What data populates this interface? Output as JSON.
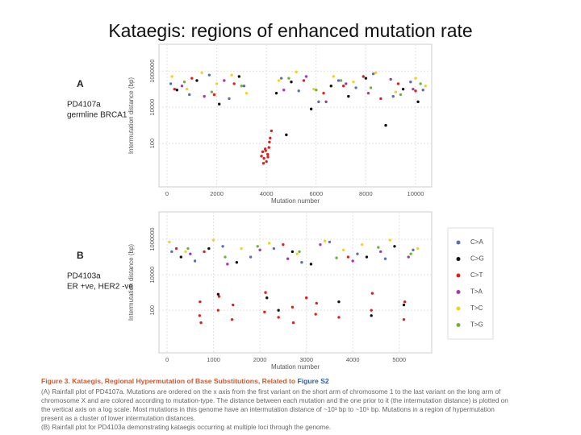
{
  "title": "Kataegis: regions of enhanced mutation rate",
  "chart_data": [
    {
      "type": "scatter",
      "panel_label": "A",
      "sample": "PD4107a",
      "description": "germline BRCA1",
      "xlabel": "Mutation number",
      "ylabel": "Intermutation distance (bp)",
      "xlim": [
        -325,
        10650
      ],
      "xticks": [
        0,
        2000,
        4000,
        6000,
        8000,
        10000
      ],
      "ylim": [
        0.4,
        30000000
      ],
      "yticks": [
        100,
        10000,
        1000000
      ],
      "log_y": true,
      "grid": true,
      "series": [
        {
          "name": "C>A",
          "color": "#5b6fb3",
          "x": [
            150,
            900,
            1700,
            2500,
            3100,
            4600,
            5300,
            6100,
            6900,
            7600,
            8300,
            9100,
            9800,
            10300
          ],
          "values": [
            200000,
            50000,
            600000,
            30000,
            150000,
            400000,
            80000,
            20000,
            300000,
            120000,
            700000,
            40000,
            250000,
            90000
          ]
        },
        {
          "name": "C>G",
          "color": "#111111",
          "x": [
            400,
            1200,
            2100,
            2900,
            4400,
            5000,
            5800,
            6600,
            7300,
            8000,
            8800,
            9500,
            10100,
            4800
          ],
          "values": [
            90000,
            300000,
            15000,
            500000,
            60000,
            250000,
            8000,
            150000,
            40000,
            400000,
            1000,
            100000,
            20000,
            300
          ]
        },
        {
          "name": "C>T",
          "color": "#e0201b",
          "x": [
            300,
            1000,
            1900,
            2700,
            3800,
            3850,
            3900,
            3950,
            4000,
            4050,
            4100,
            4150,
            4200,
            3880,
            3970,
            4060,
            4120,
            5500,
            6300,
            7100,
            7900,
            8600,
            9300,
            10000
          ],
          "values": [
            100000,
            400000,
            50000,
            200000,
            20,
            35,
            15,
            50,
            10,
            25,
            60,
            200,
            500,
            8,
            40,
            18,
            120,
            300000,
            60000,
            150000,
            500000,
            30000,
            200000,
            80000
          ]
        },
        {
          "name": "T>A",
          "color": "#a23aa8",
          "x": [
            600,
            1500,
            2300,
            4700,
            5600,
            6400,
            7200,
            8100,
            9000,
            9900
          ],
          "values": [
            150000,
            40000,
            300000,
            90000,
            500000,
            20000,
            200000,
            60000,
            350000,
            100000
          ]
        },
        {
          "name": "T>C",
          "color": "#f2d31b",
          "x": [
            200,
            800,
            1400,
            2000,
            2600,
            3200,
            4500,
            5200,
            5900,
            6700,
            7500,
            8400,
            9200,
            10000,
            10400
          ],
          "values": [
            500000,
            100000,
            800000,
            200000,
            600000,
            60000,
            300000,
            900000,
            100000,
            500000,
            250000,
            800000,
            70000,
            400000,
            150000
          ]
        },
        {
          "name": "T>G",
          "color": "#6cb33f",
          "x": [
            700,
            1800,
            3000,
            4900,
            6000,
            7000,
            8200,
            9400,
            10200
          ],
          "values": [
            250000,
            70000,
            150000,
            400000,
            90000,
            300000,
            120000,
            50000,
            200000
          ]
        }
      ]
    },
    {
      "type": "scatter",
      "panel_label": "B",
      "sample": "PD4103a",
      "description": "ER +ve, HER2 -ve",
      "xlabel": "Mutation number",
      "ylabel": "Intermutation distance (bp)",
      "xlim": [
        -175,
        5700
      ],
      "xticks": [
        0,
        1000,
        2000,
        3000,
        4000,
        5000
      ],
      "ylim": [
        0.4,
        35000000
      ],
      "yticks": [
        100,
        10000,
        1000000
      ],
      "log_y": true,
      "grid": true,
      "series": [
        {
          "name": "C>A",
          "color": "#5b6fb3",
          "x": [
            100,
            600,
            1200,
            1800,
            2300,
            2900,
            3500,
            4100,
            4700,
            5300
          ],
          "values": [
            200000,
            60000,
            400000,
            100000,
            300000,
            50000,
            700000,
            150000,
            80000,
            250000
          ]
        },
        {
          "name": "C>G",
          "color": "#111111",
          "x": [
            300,
            900,
            1500,
            2150,
            2700,
            3100,
            3700,
            4300,
            4900,
            5100,
            1100,
            2400,
            4400
          ],
          "values": [
            100000,
            300000,
            50000,
            500,
            200000,
            40000,
            300,
            100000,
            400000,
            200,
            800,
            100,
            50
          ]
        },
        {
          "name": "C>T",
          "color": "#e0201b",
          "x": [
            200,
            700,
            710,
            730,
            1100,
            1120,
            1400,
            1420,
            2100,
            2120,
            2400,
            2700,
            2720,
            3000,
            3200,
            3220,
            3700,
            4400,
            4420,
            5100,
            5120,
            800,
            2500,
            3900
          ],
          "values": [
            300000,
            50,
            300,
            20,
            100,
            600,
            30,
            200,
            80,
            1000,
            40,
            150,
            20,
            500,
            60,
            250,
            40,
            100,
            900,
            30,
            300,
            200000,
            500000,
            100000
          ]
        },
        {
          "name": "T>A",
          "color": "#a23aa8",
          "x": [
            500,
            1300,
            2000,
            2600,
            3300,
            4000,
            4600,
            5200
          ],
          "values": [
            150000,
            40000,
            250000,
            80000,
            500000,
            60000,
            200000,
            100000
          ]
        },
        {
          "name": "T>C",
          "color": "#f2d31b",
          "x": [
            50,
            400,
            1000,
            1600,
            2200,
            2800,
            3400,
            3800,
            4200,
            4800,
            5400
          ],
          "values": [
            700000,
            200000,
            900000,
            300000,
            600000,
            150000,
            800000,
            250000,
            500000,
            900000,
            300000
          ]
        },
        {
          "name": "T>G",
          "color": "#6cb33f",
          "x": [
            450,
            1250,
            1950,
            2850,
            3650,
            4550,
            5250
          ],
          "values": [
            300000,
            100000,
            400000,
            200000,
            90000,
            350000,
            150000
          ]
        }
      ]
    }
  ],
  "caption": {
    "heading": "Figure 3. Kataegis, Regional Hypermutation of Base Substitutions, Related to ",
    "link": "Figure S2",
    "lines": [
      "(A) Rainfall plot of PD4107a. Mutations are ordered on the x axis from the first variant on the short arm of chromosome 1 to the last variant on the long arm of",
      "chromosome X and are colored according to mutation-type. The distance between each mutation and the one prior to it (the intermutation distance) is plotted on",
      "the vertical axis on a log scale. Most mutations in this genome have an intermutation distance of ~10³ bp to ~10⁵ bp. Mutations in a region of hypermutation",
      "present as a cluster of lower intermutation distances.",
      "(B) Rainfall plot for PD4103a demonstrating kataegis occurring at multiple loci through the genome."
    ]
  }
}
